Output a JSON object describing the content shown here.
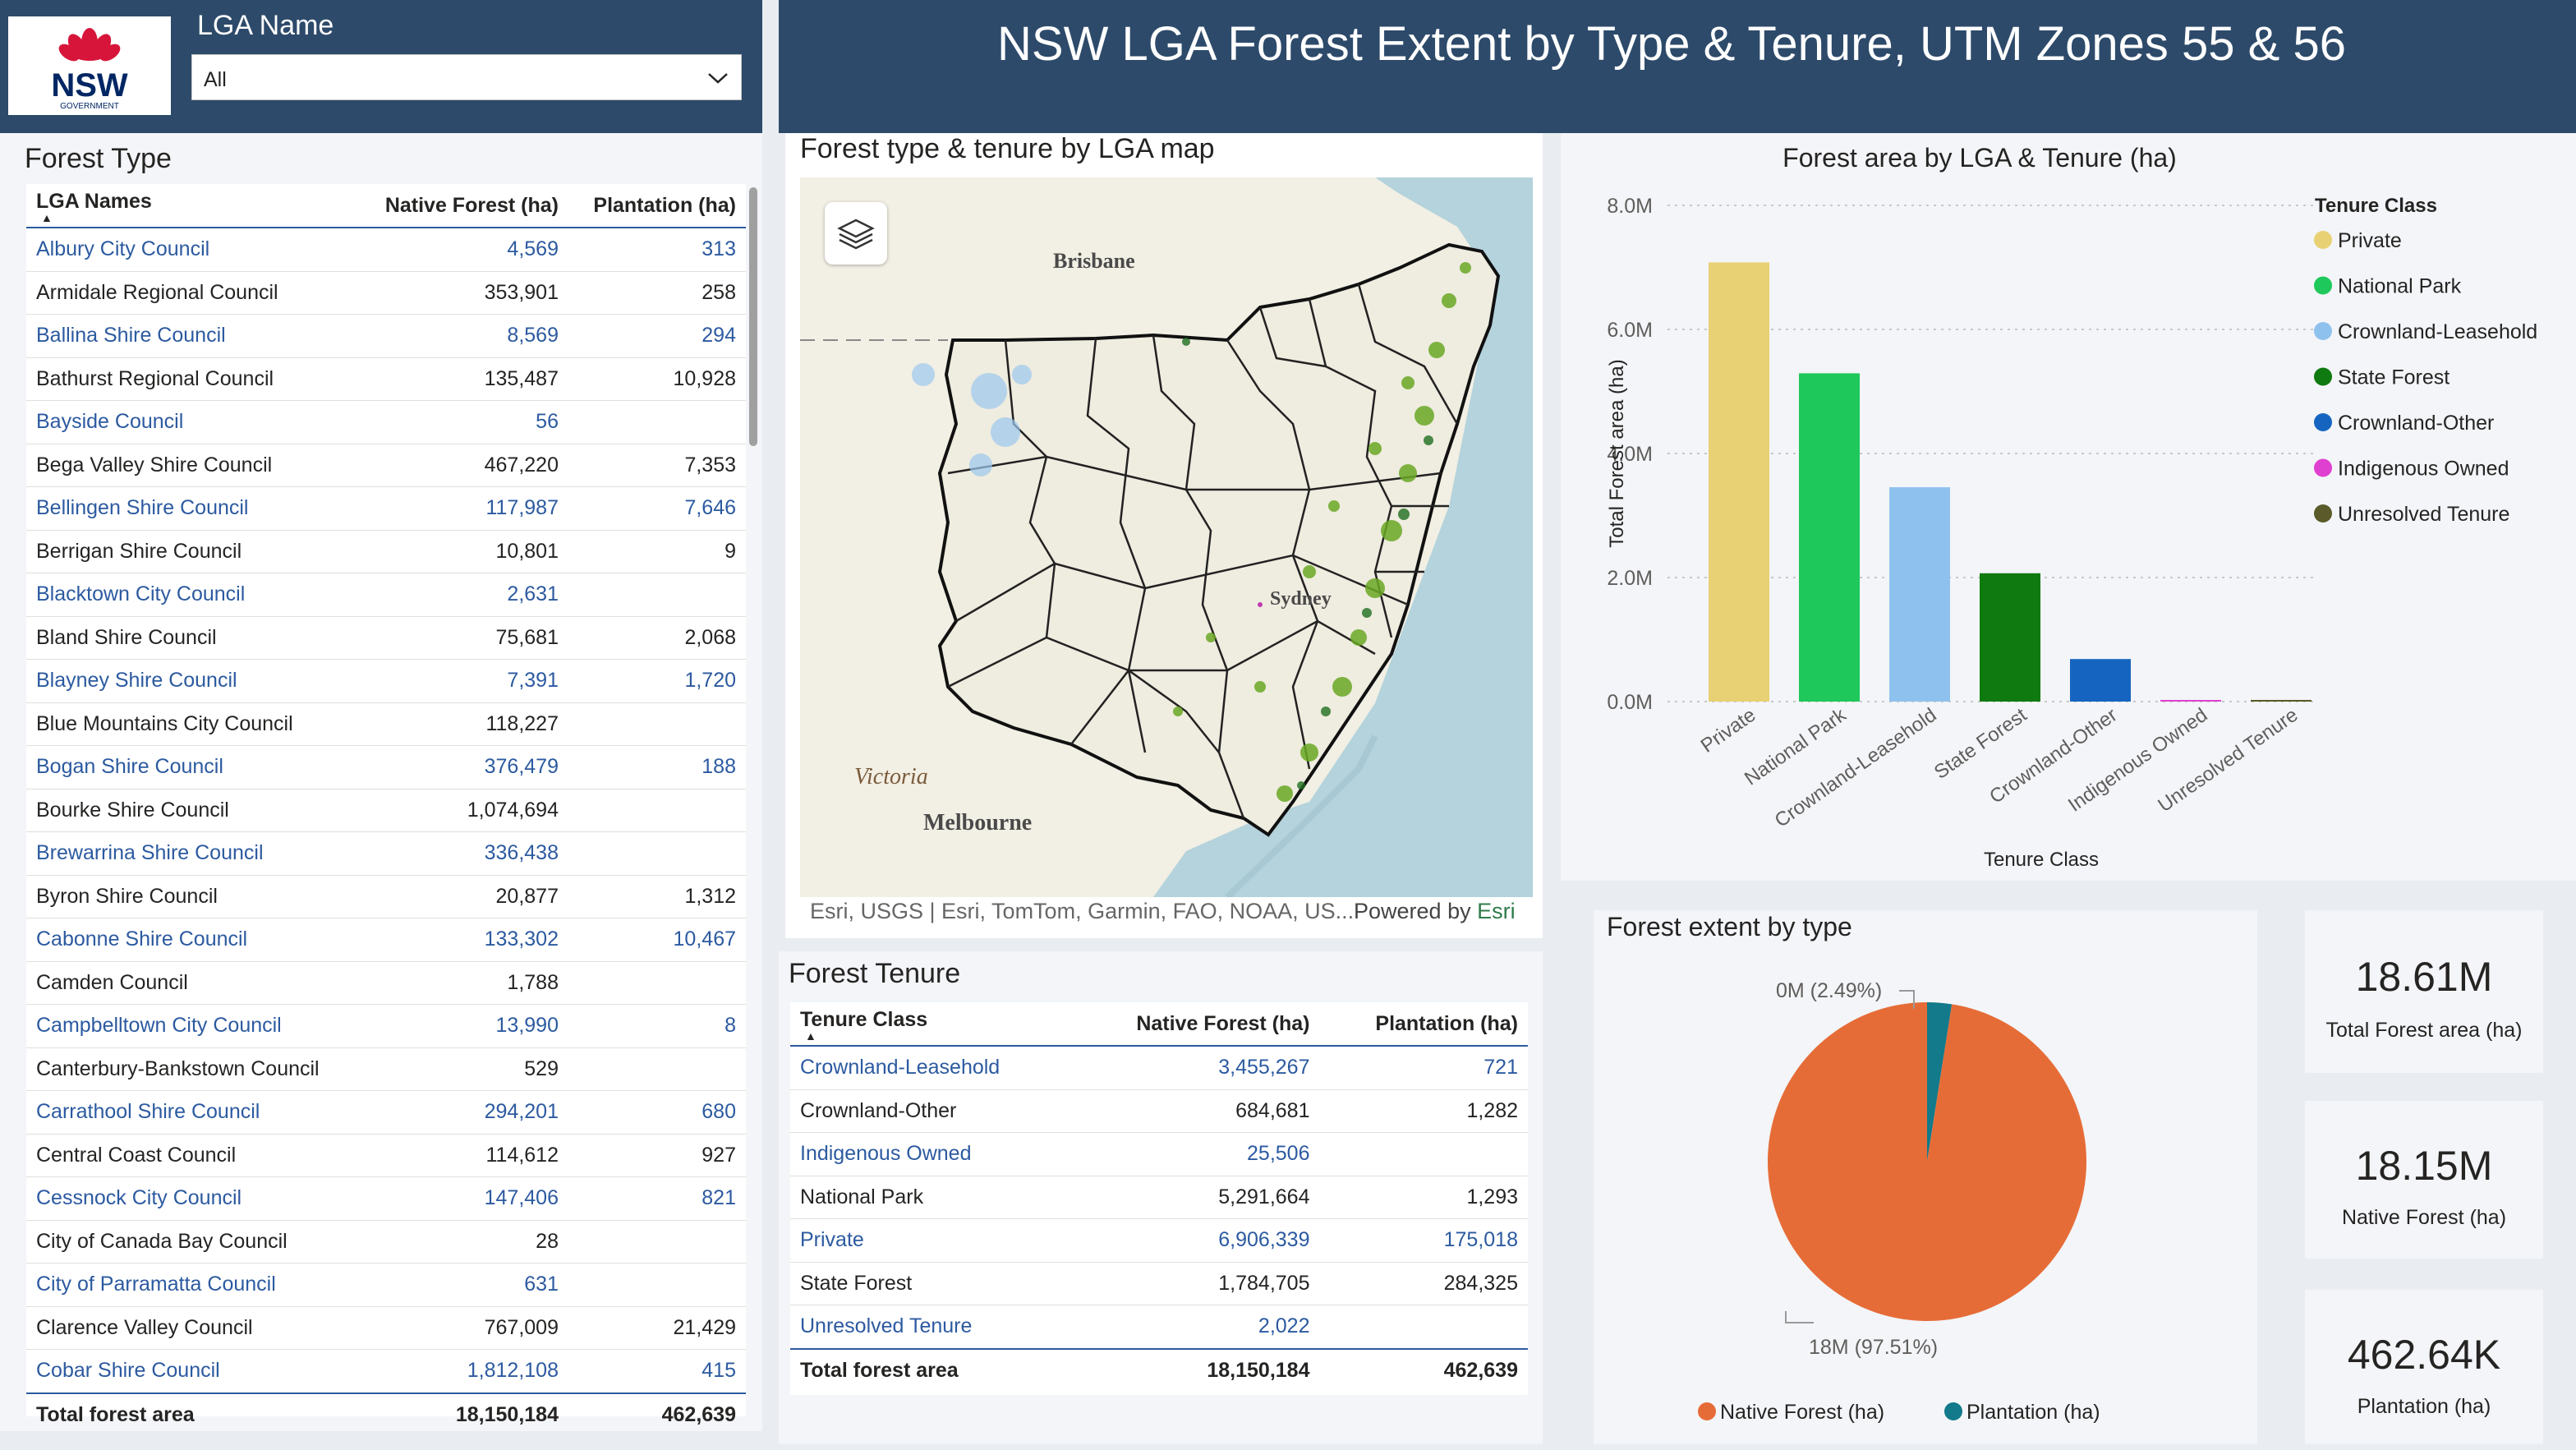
{
  "header": {
    "logo_text": "NSW",
    "logo_subtext": "GOVERNMENT",
    "lga_label": "LGA Name",
    "lga_value": "All",
    "title": "NSW LGA Forest Extent by Type & Tenure, UTM Zones 55 & 56"
  },
  "forest_type": {
    "title": "Forest Type",
    "columns": [
      "LGA Names",
      "Native Forest (ha)",
      "Plantation (ha)"
    ],
    "rows": [
      [
        "Albury City Council",
        "4,569",
        "313"
      ],
      [
        "Armidale Regional Council",
        "353,901",
        "258"
      ],
      [
        "Ballina Shire Council",
        "8,569",
        "294"
      ],
      [
        "Bathurst Regional Council",
        "135,487",
        "10,928"
      ],
      [
        "Bayside Council",
        "56",
        ""
      ],
      [
        "Bega Valley Shire Council",
        "467,220",
        "7,353"
      ],
      [
        "Bellingen Shire Council",
        "117,987",
        "7,646"
      ],
      [
        "Berrigan Shire Council",
        "10,801",
        "9"
      ],
      [
        "Blacktown City Council",
        "2,631",
        ""
      ],
      [
        "Bland Shire Council",
        "75,681",
        "2,068"
      ],
      [
        "Blayney Shire Council",
        "7,391",
        "1,720"
      ],
      [
        "Blue Mountains City Council",
        "118,227",
        ""
      ],
      [
        "Bogan Shire Council",
        "376,479",
        "188"
      ],
      [
        "Bourke Shire Council",
        "1,074,694",
        ""
      ],
      [
        "Brewarrina Shire Council",
        "336,438",
        ""
      ],
      [
        "Byron Shire Council",
        "20,877",
        "1,312"
      ],
      [
        "Cabonne Shire Council",
        "133,302",
        "10,467"
      ],
      [
        "Camden Council",
        "1,788",
        ""
      ],
      [
        "Campbelltown City Council",
        "13,990",
        "8"
      ],
      [
        "Canterbury-Bankstown Council",
        "529",
        ""
      ],
      [
        "Carrathool Shire Council",
        "294,201",
        "680"
      ],
      [
        "Central Coast Council",
        "114,612",
        "927"
      ],
      [
        "Cessnock City Council",
        "147,406",
        "821"
      ],
      [
        "City of Canada Bay Council",
        "28",
        ""
      ],
      [
        "City of Parramatta Council",
        "631",
        ""
      ],
      [
        "Clarence Valley Council",
        "767,009",
        "21,429"
      ],
      [
        "Cobar Shire Council",
        "1,812,108",
        "415"
      ]
    ],
    "total": [
      "Total forest area",
      "18,150,184",
      "462,639"
    ]
  },
  "map": {
    "title": "Forest type & tenure by LGA map",
    "labels": {
      "brisbane": "Brisbane",
      "sydney": "Sydney",
      "victoria": "Victoria",
      "melbourne": "Melbourne"
    },
    "attribution": "Esri, USGS | Esri, TomTom, Garmin, FAO, NOAA, US...",
    "powered_by": "Powered by",
    "esri": "Esri",
    "layers_icon": "layers-icon"
  },
  "forest_tenure": {
    "title": "Forest Tenure",
    "columns": [
      "Tenure Class",
      "Native Forest (ha)",
      "Plantation (ha)"
    ],
    "rows": [
      [
        "Crownland-Leasehold",
        "3,455,267",
        "721"
      ],
      [
        "Crownland-Other",
        "684,681",
        "1,282"
      ],
      [
        "Indigenous Owned",
        "25,506",
        ""
      ],
      [
        "National Park",
        "5,291,664",
        "1,293"
      ],
      [
        "Private",
        "6,906,339",
        "175,018"
      ],
      [
        "State Forest",
        "1,784,705",
        "284,325"
      ],
      [
        "Unresolved Tenure",
        "2,022",
        ""
      ]
    ],
    "total": [
      "Total forest area",
      "18,150,184",
      "462,639"
    ]
  },
  "bar_chart": {
    "title": "Forest area by LGA & Tenure (ha)",
    "ylabel": "Total Forest area (ha)",
    "xlabel": "Tenure Class",
    "legend_title": "Tenure Class",
    "yticks": [
      "0.0M",
      "2.0M",
      "4.0M",
      "6.0M",
      "8.0M"
    ]
  },
  "pie_chart": {
    "title": "Forest extent by type",
    "label_small": "0M (2.49%)",
    "label_large": "18M (97.51%)"
  },
  "kpis": [
    {
      "value": "18.61M",
      "label": "Total Forest area (ha)"
    },
    {
      "value": "18.15M",
      "label": "Native Forest (ha)"
    },
    {
      "value": "462.64K",
      "label": "Plantation (ha)"
    }
  ],
  "chart_data": [
    {
      "type": "bar",
      "title": "Forest area by LGA & Tenure (ha)",
      "xlabel": "Tenure Class",
      "ylabel": "Total Forest area (ha)",
      "ylim": [
        0,
        8000000
      ],
      "grid": true,
      "legend": "right",
      "categories": [
        "Private",
        "National Park",
        "Crownland-Leasehold",
        "State Forest",
        "Crownland-Other",
        "Indigenous Owned",
        "Unresolved Tenure"
      ],
      "values": [
        7081357,
        5292957,
        3455988,
        2069030,
        685963,
        25506,
        2022
      ],
      "colors": [
        "#e8d174",
        "#1ec85a",
        "#8fc1ef",
        "#0f7a0f",
        "#1565c0",
        "#e040d0",
        "#5a5a2a"
      ]
    },
    {
      "type": "pie",
      "title": "Forest extent by type",
      "labels": [
        "Native Forest (ha)",
        "Plantation (ha)"
      ],
      "values": [
        18150184,
        462639
      ],
      "colors": [
        "#e66c37",
        "#127a8a"
      ],
      "legend": "bottom"
    }
  ]
}
